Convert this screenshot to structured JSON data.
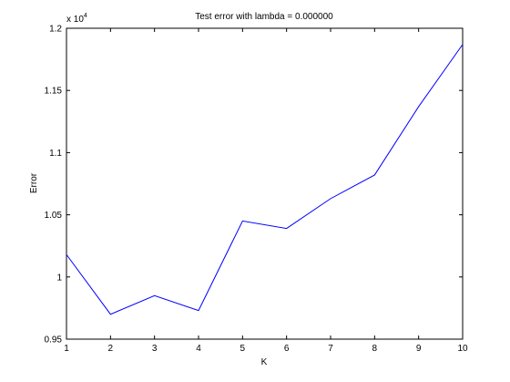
{
  "chart_data": {
    "type": "line",
    "title": "Test error with lambda = 0.000000",
    "xlabel": "K",
    "ylabel": "Error",
    "exponent_label": {
      "base": "x 10",
      "power": "4"
    },
    "x": [
      1,
      2,
      3,
      4,
      5,
      6,
      7,
      8,
      9,
      10
    ],
    "series": [
      {
        "values": [
          1.018,
          0.97,
          0.985,
          0.973,
          1.045,
          1.039,
          1.063,
          1.082,
          1.137,
          1.187
        ]
      }
    ],
    "xlim": [
      1,
      10
    ],
    "ylim": [
      0.95,
      1.2
    ],
    "x_ticks": [
      1,
      2,
      3,
      4,
      5,
      6,
      7,
      8,
      9,
      10
    ],
    "x_tick_labels": [
      "1",
      "2",
      "3",
      "4",
      "5",
      "6",
      "7",
      "8",
      "9",
      "10"
    ],
    "y_ticks": [
      0.95,
      1.0,
      1.05,
      1.1,
      1.15,
      1.2
    ],
    "y_tick_labels": [
      "0.95",
      "1",
      "1.05",
      "1.1",
      "1.15",
      "1.2"
    ],
    "grid": false,
    "legend": "none",
    "line_color": "#0000ff",
    "axis_color": "#000000"
  }
}
